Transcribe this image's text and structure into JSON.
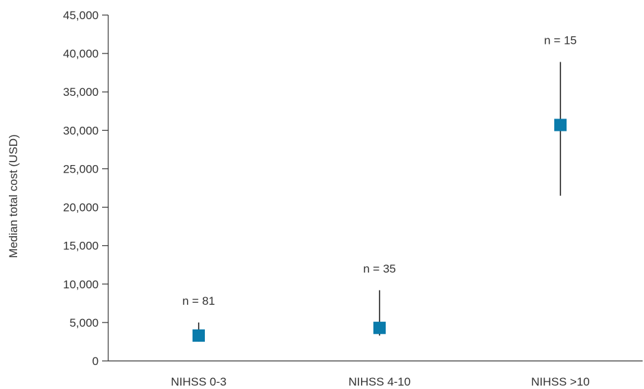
{
  "chart_data": {
    "type": "scatter",
    "title": "",
    "xlabel": "",
    "ylabel": "Median total cost (USD)",
    "ylim": [
      0,
      45000
    ],
    "yticks": [
      0,
      5000,
      10000,
      15000,
      20000,
      25000,
      30000,
      35000,
      40000,
      45000
    ],
    "ytick_labels": [
      "0",
      "5,000",
      "10,000",
      "15,000",
      "20,000",
      "25,000",
      "30,000",
      "35,000",
      "40,000",
      "45,000"
    ],
    "categories": [
      "NIHSS 0-3",
      "NIHSS 4-10",
      "NIHSS >10"
    ],
    "series": [
      {
        "values": [
          3300,
          4300,
          30700
        ],
        "error_low": [
          2500,
          3300,
          21500
        ],
        "error_high": [
          5000,
          9200,
          38900
        ],
        "annotations": [
          "n = 81",
          "n = 35",
          "n = 15"
        ],
        "marker": "square",
        "color": "#0a7bab"
      }
    ],
    "grid": false,
    "legend": "none"
  }
}
